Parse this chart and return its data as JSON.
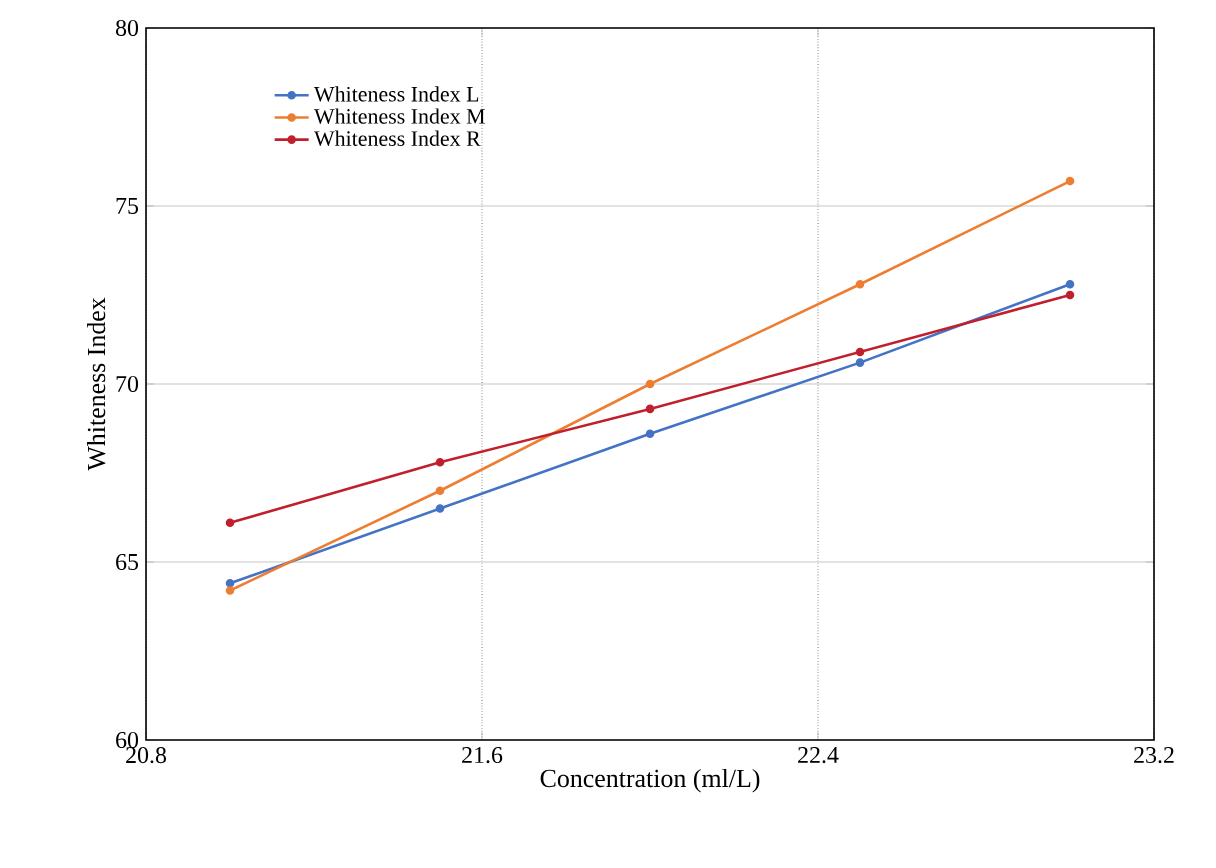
{
  "chart_data": {
    "type": "line",
    "xlabel": "Concentration (ml/L)",
    "ylabel": "Whiteness Index",
    "x": [
      21.0,
      21.5,
      22.0,
      22.5,
      23.0
    ],
    "series": [
      {
        "name": "Whiteness Index L",
        "color": "#4472c4",
        "values": [
          64.4,
          66.5,
          68.6,
          70.6,
          72.8
        ]
      },
      {
        "name": "Whiteness Index M",
        "color": "#ed7d31",
        "values": [
          64.2,
          67.0,
          70.0,
          72.8,
          75.7
        ]
      },
      {
        "name": "Whiteness Index R",
        "color": "#c0202e",
        "values": [
          66.1,
          67.8,
          69.3,
          70.9,
          72.5
        ]
      }
    ],
    "xlim": [
      20.8,
      23.2
    ],
    "xticks": [
      20.8,
      21.6,
      22.4,
      23.2
    ],
    "ylim": [
      60,
      80
    ],
    "yticks": [
      60,
      65,
      70,
      75,
      80
    ],
    "grid": true,
    "legend": "top left",
    "marker": "circle",
    "line_style": "solid"
  }
}
